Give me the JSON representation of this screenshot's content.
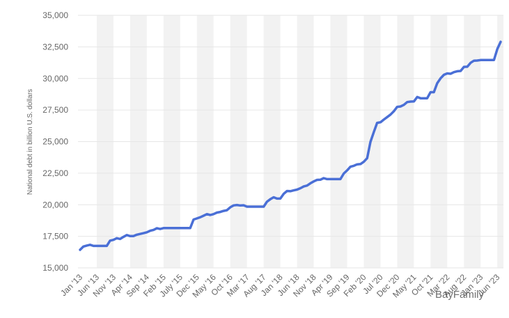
{
  "chart_data": {
    "type": "line",
    "y_label": "National debt in billion U.S. dollars",
    "watermark": "BayFamily",
    "color": "#4a6fd6",
    "categories": [
      "Jan '13",
      null,
      null,
      null,
      null,
      "Jun '13",
      null,
      null,
      null,
      null,
      "Nov '13",
      null,
      null,
      null,
      null,
      "Apr '14",
      null,
      null,
      null,
      null,
      "Sep '14",
      null,
      null,
      null,
      null,
      "Feb '15",
      null,
      null,
      null,
      null,
      "July '15",
      null,
      null,
      null,
      null,
      "Dec '15",
      null,
      null,
      null,
      null,
      "May '16",
      null,
      null,
      null,
      null,
      "Oct '16",
      null,
      null,
      null,
      null,
      "Mar '17",
      null,
      null,
      null,
      null,
      "Aug '17",
      null,
      null,
      null,
      null,
      "Jan '18",
      null,
      null,
      null,
      null,
      "Jun '18",
      null,
      null,
      null,
      null,
      "Nov '18",
      null,
      null,
      null,
      null,
      "Apr '19",
      null,
      null,
      null,
      null,
      "Sep '19",
      null,
      null,
      null,
      null,
      "Feb '20",
      null,
      null,
      null,
      null,
      "Jul '20",
      null,
      null,
      null,
      null,
      "Dec '20",
      null,
      null,
      null,
      null,
      "May '21",
      null,
      null,
      null,
      null,
      "Oct '21",
      null,
      null,
      null,
      null,
      "Mar '22",
      null,
      null,
      null,
      null,
      "Aug '22",
      null,
      null,
      null,
      null,
      "Jan '23",
      null,
      null,
      null,
      null,
      "Jun '23",
      null
    ],
    "values": [
      16430,
      16690,
      16770,
      16830,
      16740,
      16740,
      16740,
      16740,
      16740,
      17160,
      17220,
      17350,
      17290,
      17460,
      17600,
      17520,
      17520,
      17630,
      17690,
      17750,
      17820,
      17940,
      18010,
      18140,
      18080,
      18150,
      18150,
      18150,
      18150,
      18150,
      18150,
      18150,
      18150,
      18150,
      18830,
      18920,
      19010,
      19130,
      19260,
      19190,
      19260,
      19380,
      19430,
      19510,
      19570,
      19800,
      19950,
      19980,
      19940,
      19960,
      19850,
      19850,
      19850,
      19850,
      19850,
      19850,
      20240,
      20440,
      20590,
      20490,
      20490,
      20860,
      21090,
      21070,
      21140,
      21200,
      21310,
      21450,
      21520,
      21700,
      21850,
      21970,
      21980,
      22110,
      22030,
      22030,
      22030,
      22030,
      22030,
      22470,
      22720,
      23010,
      23080,
      23200,
      23220,
      23410,
      23690,
      24970,
      25750,
      26480,
      26530,
      26740,
      26940,
      27140,
      27400,
      27750,
      27780,
      27910,
      28130,
      28170,
      28180,
      28530,
      28430,
      28430,
      28430,
      28910,
      28910,
      29620,
      30010,
      30290,
      30400,
      30370,
      30500,
      30570,
      30590,
      30920,
      30930,
      31240,
      31410,
      31420,
      31460,
      31460,
      31460,
      31460,
      31460,
      32330,
      32900
    ],
    "ylim": [
      15000,
      35000
    ],
    "yticks": [
      {
        "value": 15000,
        "label": "15,000"
      },
      {
        "value": 17500,
        "label": "17,500"
      },
      {
        "value": 20000,
        "label": "20,000"
      },
      {
        "value": 22500,
        "label": "22,500"
      },
      {
        "value": 25000,
        "label": "25,000"
      },
      {
        "value": 27500,
        "label": "27,500"
      },
      {
        "value": 30000,
        "label": "30,000"
      },
      {
        "value": 32500,
        "label": "32,500"
      },
      {
        "value": 35000,
        "label": "35,000"
      }
    ],
    "grid": true
  }
}
